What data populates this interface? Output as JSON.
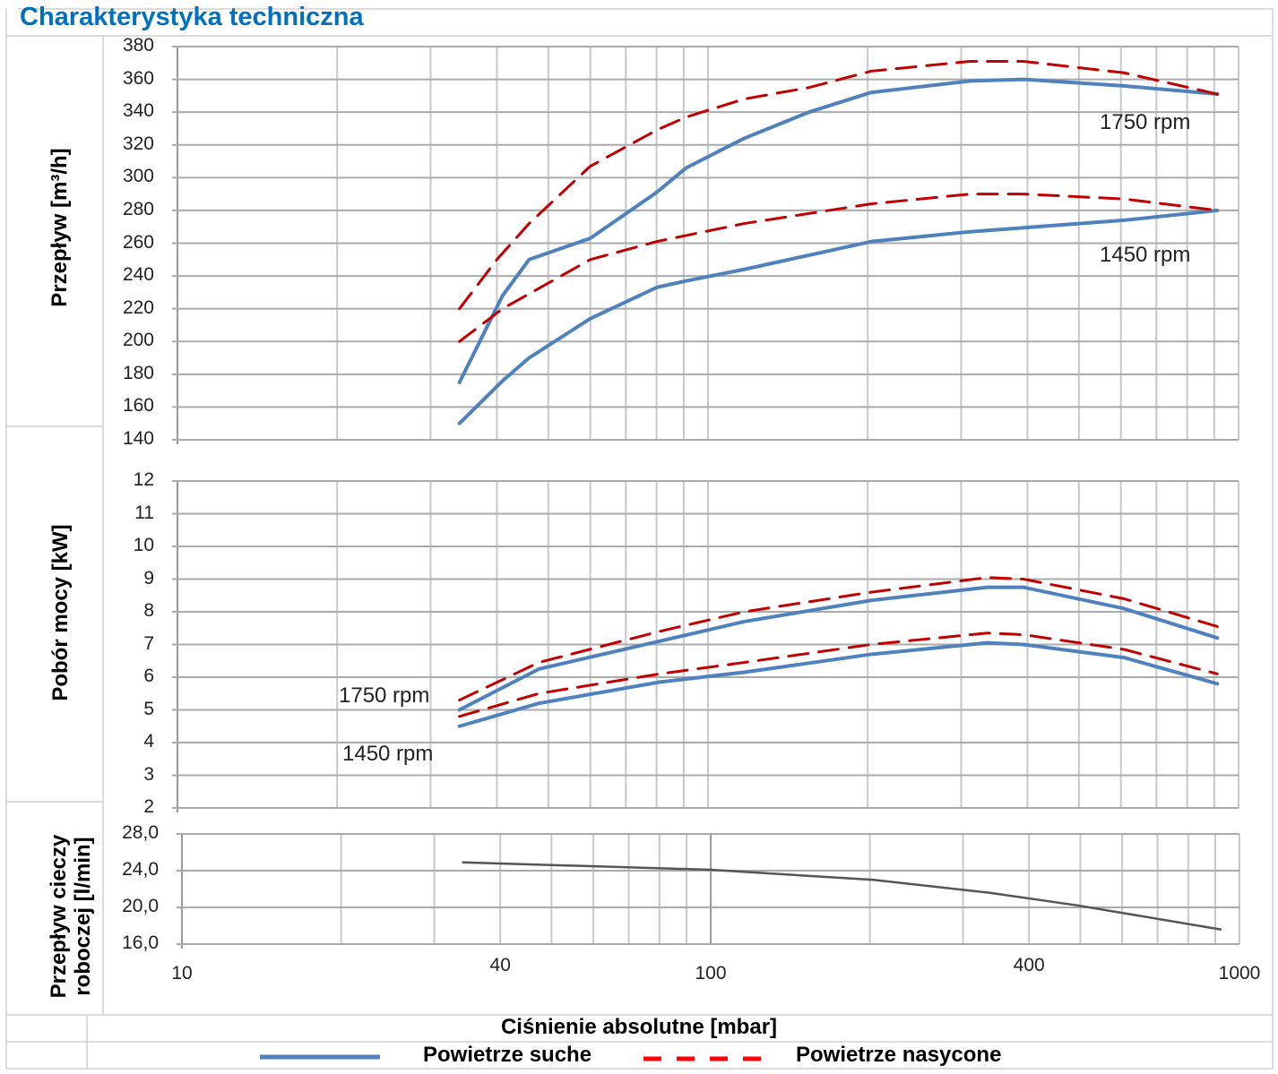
{
  "title": "Charakterystyka techniczna",
  "legend": {
    "dry": "Powietrze suche",
    "wet": "Powietrze nasycone",
    "dry_color": "#4f81bd",
    "wet_color": "#c00000"
  },
  "chart_data": [
    {
      "type": "line",
      "ylabel": "Przepływ [m³/h]",
      "xscale": "log",
      "xlim": [
        10,
        1000
      ],
      "ylim": [
        140,
        380
      ],
      "yticks": [
        "380",
        "360",
        "340",
        "320",
        "300",
        "280",
        "260",
        "240",
        "220",
        "200",
        "180",
        "160",
        "140"
      ],
      "annotations": [
        "1750 rpm",
        "1450 rpm"
      ],
      "series": [
        {
          "name": "1750 rpm - Powietrze suche",
          "style": "dry",
          "x": [
            34,
            41,
            46,
            60,
            80,
            91,
            117,
            155,
            203,
            312,
            393,
            608,
            912
          ],
          "y": [
            175,
            228,
            250,
            263,
            291,
            306,
            324,
            340,
            352,
            359,
            360,
            356,
            351
          ]
        },
        {
          "name": "1750 rpm - Powietrze nasycone",
          "style": "wet",
          "x": [
            34,
            40,
            46,
            60,
            80,
            91,
            117,
            155,
            203,
            312,
            393,
            608,
            912
          ],
          "y": [
            220,
            250,
            272,
            307,
            329,
            337,
            348,
            355,
            365,
            371,
            371,
            364,
            351
          ]
        },
        {
          "name": "1450 rpm - Powietrze suche",
          "style": "dry",
          "x": [
            34,
            41,
            46,
            60,
            80,
            91,
            117,
            203,
            312,
            608,
            912
          ],
          "y": [
            150,
            176,
            190,
            214,
            233,
            237,
            244,
            261,
            267,
            274,
            280
          ]
        },
        {
          "name": "1450 rpm - Powietrze nasycone",
          "style": "wet",
          "x": [
            34,
            41,
            60,
            80,
            117,
            203,
            312,
            393,
            608,
            912
          ],
          "y": [
            200,
            220,
            250,
            261,
            272,
            284,
            290,
            290,
            287,
            280
          ]
        }
      ]
    },
    {
      "type": "line",
      "ylabel": "Pobór mocy [kW]",
      "xscale": "log",
      "xlim": [
        10,
        1000
      ],
      "ylim": [
        2,
        12
      ],
      "yticks": [
        "12",
        "11",
        "10",
        "9",
        "8",
        "7",
        "6",
        "5",
        "4",
        "3",
        "2"
      ],
      "annotations": [
        "1750 rpm",
        "1450 rpm"
      ],
      "series": [
        {
          "name": "1750 rpm - Powietrze suche",
          "style": "dry",
          "x": [
            34,
            48,
            81,
            117,
            203,
            336,
            393,
            608,
            912
          ],
          "y": [
            5.0,
            6.25,
            7.1,
            7.7,
            8.35,
            8.75,
            8.75,
            8.1,
            7.2
          ]
        },
        {
          "name": "1750 rpm - Powietrze nasycone",
          "style": "wet",
          "x": [
            34,
            48,
            81,
            117,
            203,
            336,
            393,
            608,
            912
          ],
          "y": [
            5.3,
            6.45,
            7.4,
            8.0,
            8.6,
            9.05,
            9.0,
            8.4,
            7.55
          ]
        },
        {
          "name": "1450 rpm - Powietrze suche",
          "style": "dry",
          "x": [
            34,
            48,
            81,
            117,
            203,
            336,
            393,
            608,
            912
          ],
          "y": [
            4.5,
            5.2,
            5.85,
            6.15,
            6.7,
            7.05,
            7.0,
            6.6,
            5.8
          ]
        },
        {
          "name": "1450 rpm - Powietrze nasycone",
          "style": "wet",
          "x": [
            34,
            48,
            81,
            117,
            203,
            336,
            393,
            608,
            912
          ],
          "y": [
            4.8,
            5.5,
            6.1,
            6.45,
            7.0,
            7.35,
            7.3,
            6.85,
            6.1
          ]
        }
      ]
    },
    {
      "type": "line",
      "ylabel": "Przepływ cieczy roboczej [l/min]",
      "xlabel": "Ciśnienie absolutne [mbar]",
      "xscale": "log",
      "xlim": [
        10,
        1000
      ],
      "ylim": [
        16,
        28
      ],
      "yticks": [
        "28,0",
        "24,0",
        "20,0",
        "16,0"
      ],
      "xticks": [
        "10",
        "40",
        "100",
        "400",
        "1000"
      ],
      "series": [
        {
          "name": "Przepływ cieczy",
          "style": "liquid",
          "x": [
            34,
            100,
            203,
            336,
            496,
            921
          ],
          "y": [
            24.9,
            24.1,
            23.0,
            21.6,
            20.2,
            17.6
          ]
        }
      ]
    }
  ]
}
